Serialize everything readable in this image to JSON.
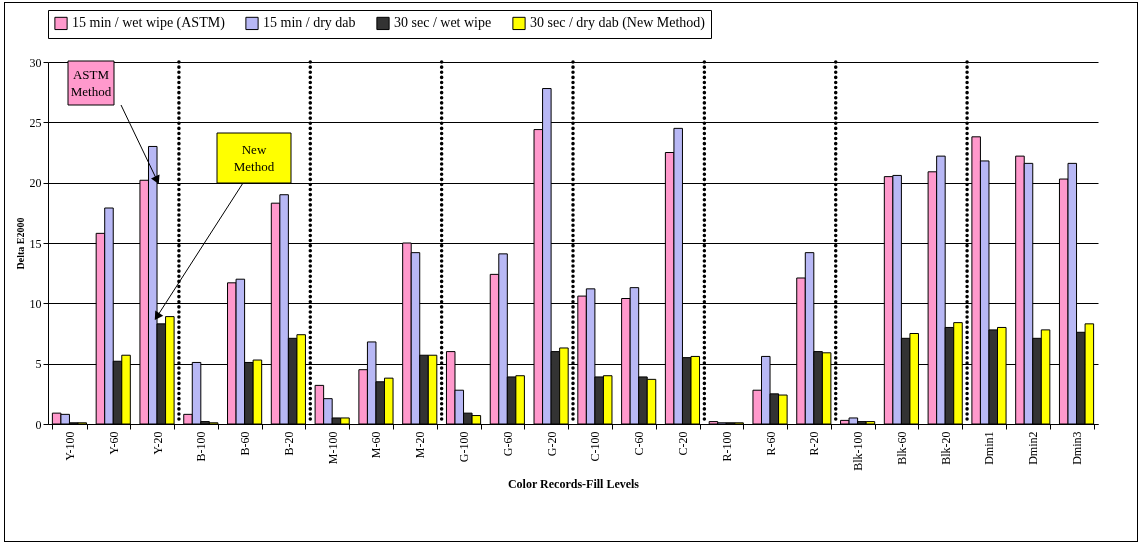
{
  "chart_data": {
    "type": "bar",
    "xlabel": "Color Records-Fill Levels",
    "ylabel": "Delta E2000",
    "categories": [
      "Y-100",
      "Y-60",
      "Y-20",
      "B-100",
      "B-60",
      "B-20",
      "M-100",
      "M-60",
      "M-20",
      "G-100",
      "G-60",
      "G-20",
      "C-100",
      "C-60",
      "C-20",
      "R-100",
      "R-60",
      "R-20",
      "Blk-100",
      "Blk-60",
      "Blk-20",
      "Dmin1",
      "Dmin2",
      "Dmin3"
    ],
    "series": [
      {
        "name": "15 min / wet wipe (ASTM)",
        "color": "#ff99cc",
        "values": [
          0.9,
          15.8,
          20.2,
          0.8,
          11.7,
          18.3,
          3.2,
          4.5,
          15.0,
          6.0,
          12.4,
          24.4,
          10.6,
          10.4,
          22.5,
          0.2,
          2.8,
          12.1,
          0.3,
          20.5,
          20.9,
          23.8,
          22.2,
          20.3
        ]
      },
      {
        "name": "15 min / dry dab",
        "color": "#b8b8f5",
        "values": [
          0.8,
          17.9,
          23.0,
          5.1,
          12.0,
          19.0,
          2.1,
          6.8,
          14.2,
          2.8,
          14.1,
          27.8,
          11.2,
          11.3,
          24.5,
          0.1,
          5.6,
          14.2,
          0.5,
          20.6,
          22.2,
          21.8,
          21.6,
          21.6
        ]
      },
      {
        "name": "30 sec / wet wipe",
        "color": "#333333",
        "values": [
          0.1,
          5.2,
          8.3,
          0.2,
          5.1,
          7.1,
          0.5,
          3.5,
          5.7,
          0.9,
          3.9,
          6.0,
          3.9,
          3.9,
          5.5,
          0.1,
          2.5,
          6.0,
          0.2,
          7.1,
          8.0,
          7.8,
          7.1,
          7.6
        ]
      },
      {
        "name": "30 sec / dry dab (New Method)",
        "color": "#ffff00",
        "values": [
          0.1,
          5.7,
          8.9,
          0.1,
          5.3,
          7.4,
          0.5,
          3.8,
          5.7,
          0.7,
          4.0,
          6.3,
          4.0,
          3.7,
          5.6,
          0.1,
          2.4,
          5.9,
          0.2,
          7.5,
          8.4,
          8.0,
          7.8,
          8.3
        ]
      }
    ],
    "ylim": [
      0,
      30
    ],
    "yticks": [
      0,
      5,
      10,
      15,
      20,
      25,
      30
    ],
    "grid": "y",
    "legend": "top",
    "annotations": [
      {
        "text": "ASTM Method",
        "x": "Y-20",
        "y": 20.2
      },
      {
        "text": "New Method",
        "x": "Y-20",
        "y": 8.9
      }
    ]
  }
}
